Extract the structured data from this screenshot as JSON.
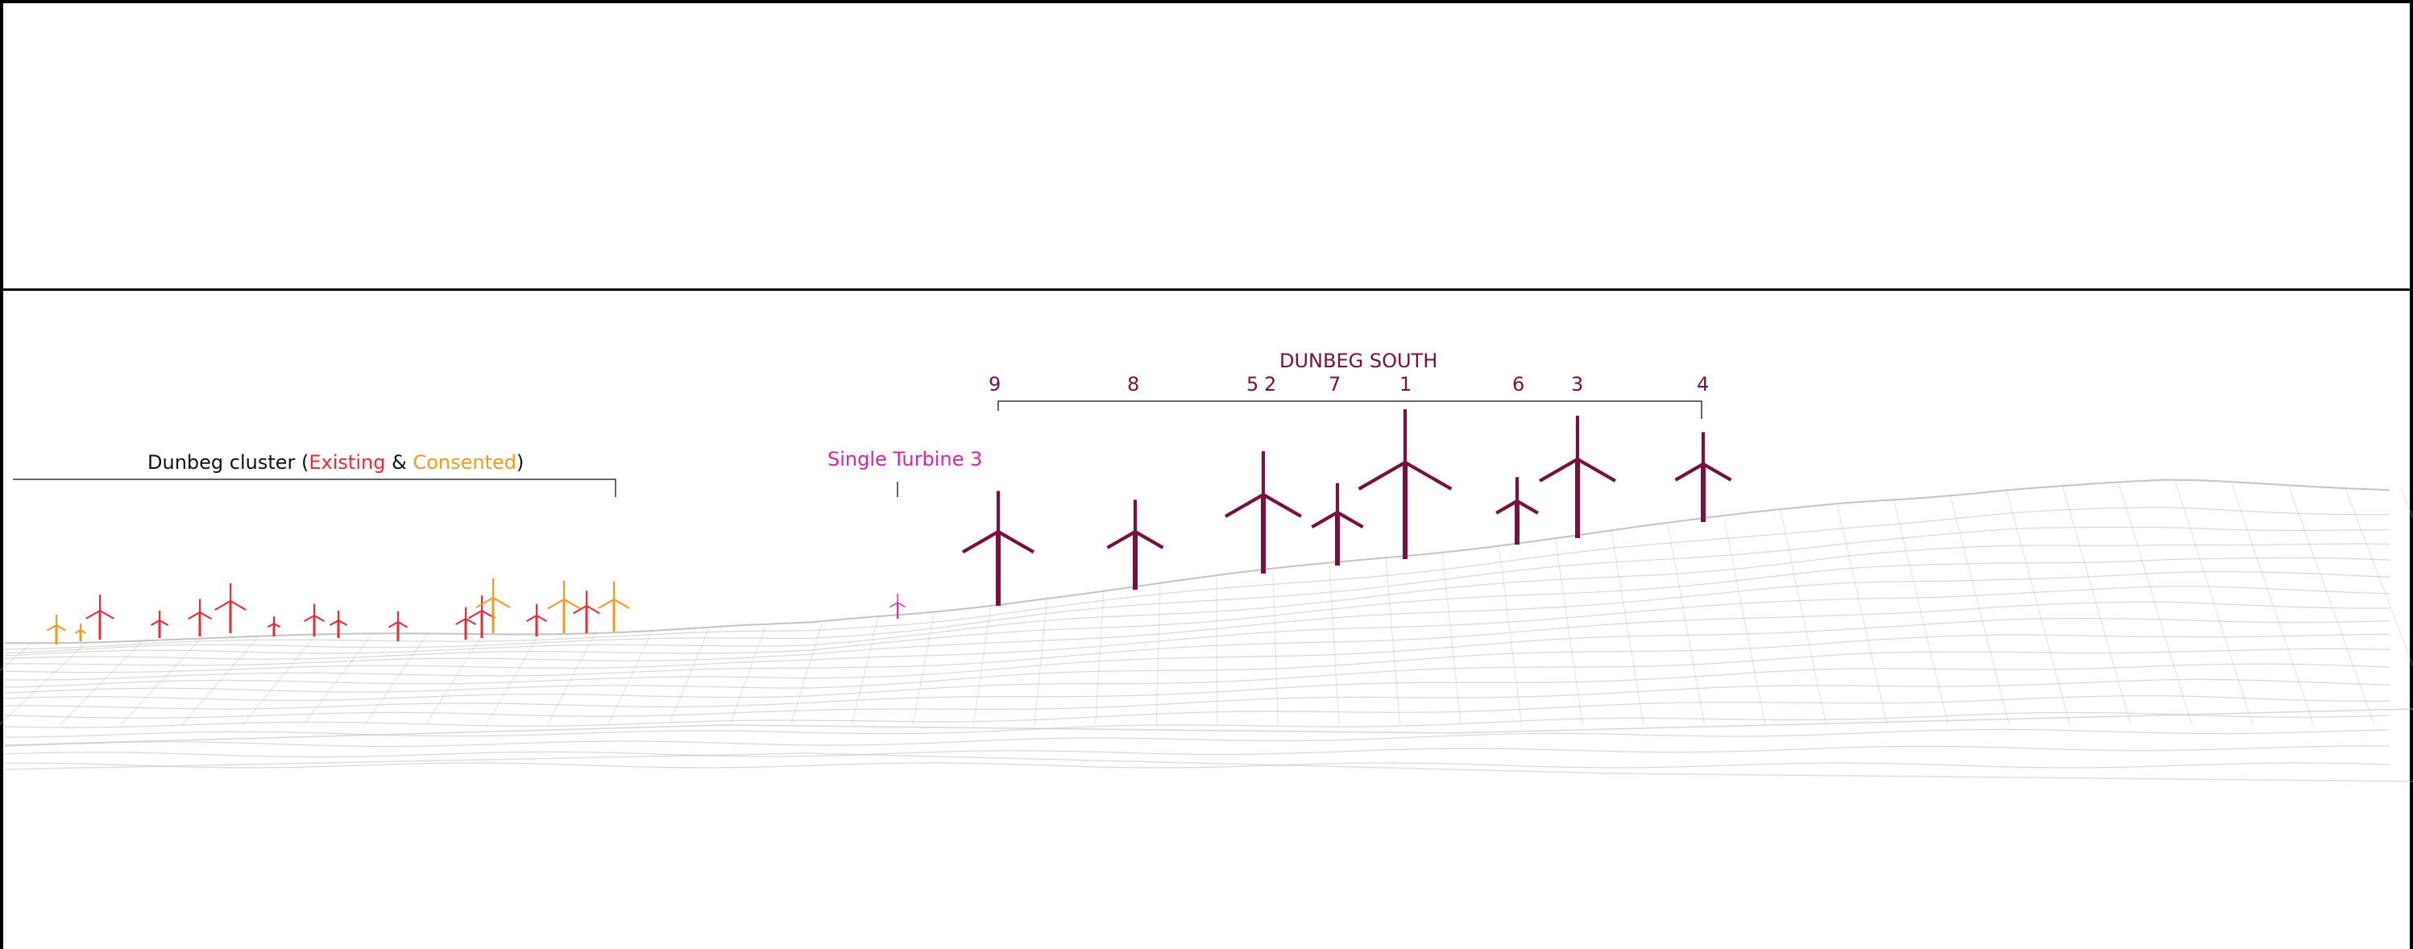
{
  "project_label": "DUNBEG SOUTH",
  "turbine_numbers": [
    "9",
    "8",
    "5",
    "2",
    "7",
    "1",
    "6",
    "3",
    "4"
  ],
  "single_turbine_label": "Single Turbine 3",
  "cluster_label": {
    "prefix": "Dunbeg cluster (",
    "existing": "Existing",
    "amp": " & ",
    "consented": "Consented",
    "suffix": ")"
  },
  "colors": {
    "proposed": "#7a1040",
    "existing": "#ee2a3a",
    "consented": "#f29a1e",
    "single": "#dd22aa",
    "wireframe": "#bdbdbd"
  }
}
